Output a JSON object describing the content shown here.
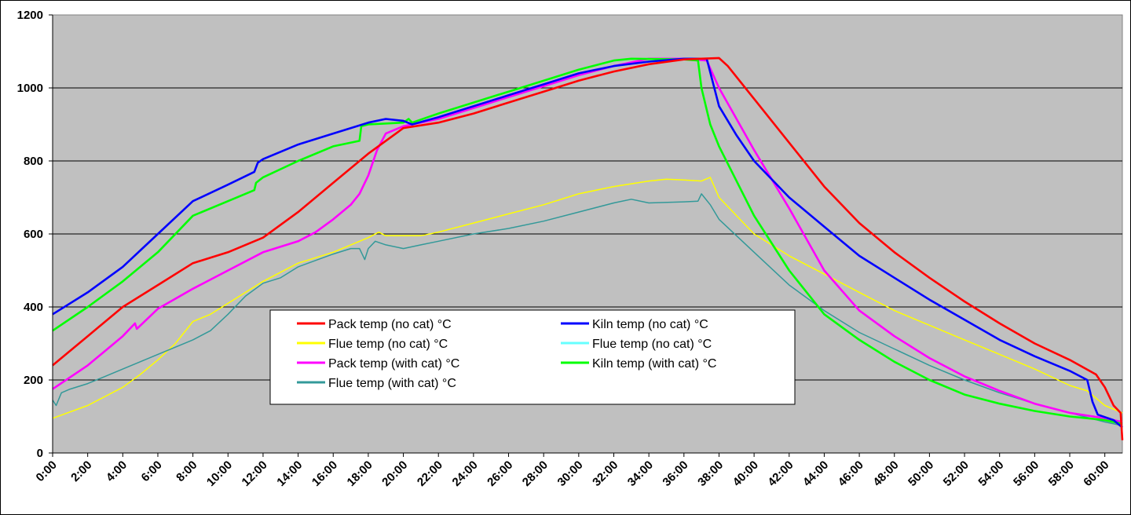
{
  "chart_data": {
    "type": "line",
    "title": "",
    "xlabel": "",
    "ylabel": "",
    "ylim": [
      0,
      1200
    ],
    "yticks": [
      "0",
      "200",
      "400",
      "600",
      "800",
      "1000",
      "1200"
    ],
    "xlim": [
      0,
      61
    ],
    "xticks": [
      "0:00",
      "2:00",
      "4:00",
      "6:00",
      "8:00",
      "10:00",
      "12:00",
      "14:00",
      "16:00",
      "18:00",
      "20:00",
      "22:00",
      "24:00",
      "26:00",
      "28:00",
      "30:00",
      "32:00",
      "34:00",
      "36:00",
      "38:00",
      "40:00",
      "42:00",
      "44:00",
      "46:00",
      "48:00",
      "50:00",
      "52:00",
      "54:00",
      "56:00",
      "58:00",
      "60:00"
    ],
    "x_unit": "hours",
    "grid": "horizontal",
    "plot_background": "#c0c0c0",
    "legend_position": "center-left",
    "series": [
      {
        "name": "Pack temp (no cat) °C",
        "color": "#ff0000",
        "points": [
          [
            0,
            240
          ],
          [
            2,
            320
          ],
          [
            4,
            400
          ],
          [
            6,
            460
          ],
          [
            8,
            520
          ],
          [
            10,
            550
          ],
          [
            12,
            590
          ],
          [
            14,
            660
          ],
          [
            16,
            740
          ],
          [
            18,
            820
          ],
          [
            20,
            890
          ],
          [
            22,
            905
          ],
          [
            24,
            930
          ],
          [
            26,
            960
          ],
          [
            28,
            990
          ],
          [
            30,
            1020
          ],
          [
            32,
            1045
          ],
          [
            34,
            1065
          ],
          [
            36,
            1078
          ],
          [
            38,
            1082
          ],
          [
            38.5,
            1060
          ],
          [
            40,
            970
          ],
          [
            42,
            850
          ],
          [
            44,
            730
          ],
          [
            46,
            630
          ],
          [
            48,
            550
          ],
          [
            50,
            480
          ],
          [
            52,
            415
          ],
          [
            54,
            355
          ],
          [
            56,
            300
          ],
          [
            58,
            255
          ],
          [
            59.5,
            215
          ],
          [
            60,
            180
          ],
          [
            60.5,
            130
          ],
          [
            60.9,
            110
          ],
          [
            61,
            35
          ]
        ]
      },
      {
        "name": "Kiln temp (no cat) °C",
        "color": "#0000ff",
        "points": [
          [
            0,
            380
          ],
          [
            2,
            440
          ],
          [
            4,
            510
          ],
          [
            6,
            600
          ],
          [
            8,
            690
          ],
          [
            10,
            735
          ],
          [
            11.5,
            770
          ],
          [
            11.7,
            795
          ],
          [
            12,
            805
          ],
          [
            14,
            845
          ],
          [
            16,
            875
          ],
          [
            18,
            905
          ],
          [
            19,
            915
          ],
          [
            20,
            910
          ],
          [
            20.5,
            900
          ],
          [
            22,
            920
          ],
          [
            24,
            950
          ],
          [
            26,
            980
          ],
          [
            28,
            1010
          ],
          [
            30,
            1040
          ],
          [
            32,
            1060
          ],
          [
            34,
            1072
          ],
          [
            36,
            1080
          ],
          [
            37.3,
            1080
          ],
          [
            38,
            950
          ],
          [
            39,
            870
          ],
          [
            40,
            800
          ],
          [
            42,
            700
          ],
          [
            44,
            620
          ],
          [
            46,
            540
          ],
          [
            48,
            480
          ],
          [
            50,
            420
          ],
          [
            52,
            365
          ],
          [
            54,
            310
          ],
          [
            56,
            265
          ],
          [
            58,
            225
          ],
          [
            59,
            200
          ],
          [
            59.3,
            140
          ],
          [
            59.6,
            105
          ],
          [
            60.5,
            90
          ],
          [
            61,
            70
          ]
        ]
      },
      {
        "name": "Flue temp (no cat) °C",
        "color": "#ffff00",
        "points": [
          [
            0,
            95
          ],
          [
            2,
            130
          ],
          [
            4,
            180
          ],
          [
            5,
            215
          ],
          [
            6,
            255
          ],
          [
            7,
            300
          ],
          [
            8,
            360
          ],
          [
            9,
            380
          ],
          [
            10,
            410
          ],
          [
            12,
            470
          ],
          [
            14,
            520
          ],
          [
            16,
            550
          ],
          [
            18,
            590
          ],
          [
            18.6,
            605
          ],
          [
            19,
            595
          ],
          [
            20,
            595
          ],
          [
            21,
            595
          ],
          [
            22,
            605
          ],
          [
            24,
            630
          ],
          [
            26,
            655
          ],
          [
            28,
            680
          ],
          [
            30,
            710
          ],
          [
            32,
            730
          ],
          [
            34,
            745
          ],
          [
            35,
            750
          ],
          [
            36,
            748
          ],
          [
            37,
            745
          ],
          [
            37.5,
            755
          ],
          [
            38,
            700
          ],
          [
            40,
            600
          ],
          [
            42,
            540
          ],
          [
            44,
            490
          ],
          [
            46,
            440
          ],
          [
            48,
            390
          ],
          [
            50,
            350
          ],
          [
            52,
            310
          ],
          [
            54,
            270
          ],
          [
            56,
            230
          ],
          [
            58,
            185
          ],
          [
            59,
            170
          ],
          [
            60,
            130
          ],
          [
            61,
            110
          ]
        ]
      },
      {
        "name": "Flue temp (no cat) °C",
        "color": "#66ffff",
        "points": []
      },
      {
        "name": "Pack temp (with cat) °C",
        "color": "#ff00ff",
        "points": [
          [
            0,
            175
          ],
          [
            2,
            240
          ],
          [
            4,
            320
          ],
          [
            4.7,
            355
          ],
          [
            4.8,
            340
          ],
          [
            6,
            395
          ],
          [
            8,
            450
          ],
          [
            10,
            500
          ],
          [
            12,
            550
          ],
          [
            14,
            580
          ],
          [
            15,
            605
          ],
          [
            16,
            640
          ],
          [
            17,
            680
          ],
          [
            17.5,
            710
          ],
          [
            18,
            760
          ],
          [
            18.5,
            830
          ],
          [
            19,
            875
          ],
          [
            20,
            895
          ],
          [
            22,
            915
          ],
          [
            24,
            945
          ],
          [
            26,
            975
          ],
          [
            28,
            1005
          ],
          [
            30,
            1035
          ],
          [
            32,
            1060
          ],
          [
            34,
            1080
          ],
          [
            36,
            1080
          ],
          [
            37.3,
            1075
          ],
          [
            38,
            1000
          ],
          [
            40,
            830
          ],
          [
            42,
            670
          ],
          [
            44,
            500
          ],
          [
            46,
            390
          ],
          [
            48,
            320
          ],
          [
            50,
            260
          ],
          [
            52,
            210
          ],
          [
            54,
            170
          ],
          [
            56,
            135
          ],
          [
            58,
            110
          ],
          [
            60,
            95
          ],
          [
            61,
            85
          ]
        ]
      },
      {
        "name": "Kiln temp (with cat) °C",
        "color": "#00ff00",
        "points": [
          [
            0,
            335
          ],
          [
            2,
            400
          ],
          [
            4,
            470
          ],
          [
            6,
            550
          ],
          [
            8,
            650
          ],
          [
            10,
            690
          ],
          [
            11.5,
            720
          ],
          [
            11.6,
            740
          ],
          [
            12,
            755
          ],
          [
            14,
            800
          ],
          [
            16,
            840
          ],
          [
            17.5,
            855
          ],
          [
            17.6,
            895
          ],
          [
            18,
            900
          ],
          [
            20,
            905
          ],
          [
            20.3,
            915
          ],
          [
            20.5,
            905
          ],
          [
            22,
            930
          ],
          [
            24,
            960
          ],
          [
            26,
            990
          ],
          [
            28,
            1020
          ],
          [
            30,
            1050
          ],
          [
            32,
            1075
          ],
          [
            33,
            1080
          ],
          [
            36,
            1078
          ],
          [
            36.8,
            1075
          ],
          [
            37,
            1000
          ],
          [
            37.5,
            900
          ],
          [
            38,
            840
          ],
          [
            40,
            650
          ],
          [
            42,
            500
          ],
          [
            44,
            380
          ],
          [
            46,
            310
          ],
          [
            48,
            250
          ],
          [
            50,
            200
          ],
          [
            52,
            160
          ],
          [
            54,
            135
          ],
          [
            56,
            115
          ],
          [
            58,
            100
          ],
          [
            60,
            90
          ],
          [
            61,
            80
          ]
        ]
      },
      {
        "name": "Flue temp (with cat) °C",
        "color": "#339999",
        "points": [
          [
            0,
            145
          ],
          [
            0.2,
            130
          ],
          [
            0.5,
            165
          ],
          [
            1,
            175
          ],
          [
            2,
            190
          ],
          [
            4,
            230
          ],
          [
            6,
            270
          ],
          [
            8,
            310
          ],
          [
            9,
            335
          ],
          [
            10,
            380
          ],
          [
            11,
            430
          ],
          [
            12,
            465
          ],
          [
            13,
            480
          ],
          [
            14,
            510
          ],
          [
            16,
            545
          ],
          [
            17,
            560
          ],
          [
            17.5,
            560
          ],
          [
            17.8,
            530
          ],
          [
            18,
            560
          ],
          [
            18.4,
            580
          ],
          [
            19,
            570
          ],
          [
            20,
            560
          ],
          [
            21,
            570
          ],
          [
            22,
            580
          ],
          [
            24,
            600
          ],
          [
            26,
            615
          ],
          [
            28,
            635
          ],
          [
            30,
            660
          ],
          [
            32,
            685
          ],
          [
            33,
            695
          ],
          [
            34,
            685
          ],
          [
            36,
            688
          ],
          [
            36.8,
            690
          ],
          [
            37,
            710
          ],
          [
            37.5,
            680
          ],
          [
            38,
            640
          ],
          [
            40,
            550
          ],
          [
            42,
            460
          ],
          [
            44,
            390
          ],
          [
            46,
            330
          ],
          [
            48,
            285
          ],
          [
            50,
            240
          ],
          [
            52,
            200
          ],
          [
            54,
            165
          ],
          [
            56,
            135
          ],
          [
            58,
            110
          ],
          [
            60,
            85
          ],
          [
            61,
            75
          ]
        ]
      }
    ]
  }
}
